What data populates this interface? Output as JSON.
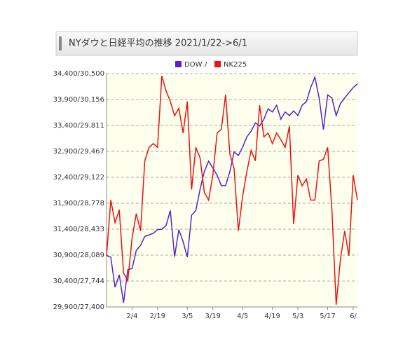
{
  "chart_data": {
    "type": "line",
    "title": "NYダウと日経平均の推移 2021/1/22->6/1",
    "legend_separator": "/",
    "categories": [
      null,
      null,
      null,
      null,
      null,
      null,
      "2/4",
      null,
      null,
      null,
      null,
      null,
      "2/19",
      null,
      null,
      null,
      null,
      null,
      null,
      "3/5",
      null,
      null,
      null,
      null,
      null,
      "3/19",
      null,
      null,
      null,
      null,
      null,
      null,
      "4/5",
      null,
      null,
      null,
      null,
      null,
      null,
      "4/19",
      null,
      null,
      null,
      null,
      null,
      "5/3",
      null,
      null,
      null,
      null,
      null,
      null,
      "5/17",
      null,
      null,
      null,
      null,
      null,
      "6/",
      null
    ],
    "series": [
      {
        "name": "DOW",
        "color": "#5522cc",
        "values": [
          30890,
          30860,
          30280,
          30520,
          29980,
          30620,
          30640,
          30990,
          31090,
          31260,
          31290,
          31320,
          31390,
          31400,
          31470,
          31760,
          30870,
          31390,
          31160,
          30860,
          31670,
          31760,
          32170,
          32510,
          32710,
          32580,
          32440,
          32240,
          32240,
          32510,
          32890,
          32820,
          32980,
          33180,
          33290,
          33450,
          33390,
          33520,
          33720,
          33660,
          33790,
          33520,
          33660,
          33590,
          33680,
          33590,
          33790,
          33860,
          34130,
          34330,
          33930,
          33320,
          33990,
          33930,
          33590,
          33820,
          33930,
          34030,
          34130,
          34200
        ]
      },
      {
        "name": "NK225",
        "color": "#ee1111",
        "axis": "y2",
        "values": [
          28080,
          28820,
          28520,
          28690,
          27850,
          27750,
          28310,
          28640,
          28410,
          29340,
          29520,
          29570,
          29520,
          30470,
          30270,
          30130,
          29940,
          30040,
          29710,
          30130,
          28960,
          29520,
          29380,
          28920,
          28820,
          29150,
          29710,
          29760,
          30220,
          29430,
          29240,
          28410,
          28870,
          29200,
          29480,
          29340,
          30080,
          29660,
          29710,
          29570,
          29710,
          29620,
          29520,
          29800,
          28500,
          29150,
          29010,
          29100,
          28820,
          28820,
          29340,
          29360,
          29520,
          28690,
          27430,
          28030,
          28410,
          28080,
          29150,
          28820
        ]
      }
    ],
    "ylim": [
      29900,
      34400
    ],
    "yticks": [
      {
        "value": 29900,
        "label": "29,900/27,400"
      },
      {
        "value": 30400,
        "label": "30,400/27,744"
      },
      {
        "value": 30900,
        "label": "30,900/28,089"
      },
      {
        "value": 31400,
        "label": "31,400/28,433"
      },
      {
        "value": 31900,
        "label": "31,900/28,778"
      },
      {
        "value": 32400,
        "label": "32,400/29,122"
      },
      {
        "value": 32900,
        "label": "32,900/29,467"
      },
      {
        "value": 33400,
        "label": "33,400/29,811"
      },
      {
        "value": 33900,
        "label": "33,900/30,156"
      },
      {
        "value": 34400,
        "label": "34,400/30,500"
      }
    ],
    "y2lim": [
      27400,
      30500
    ],
    "grid": true
  }
}
